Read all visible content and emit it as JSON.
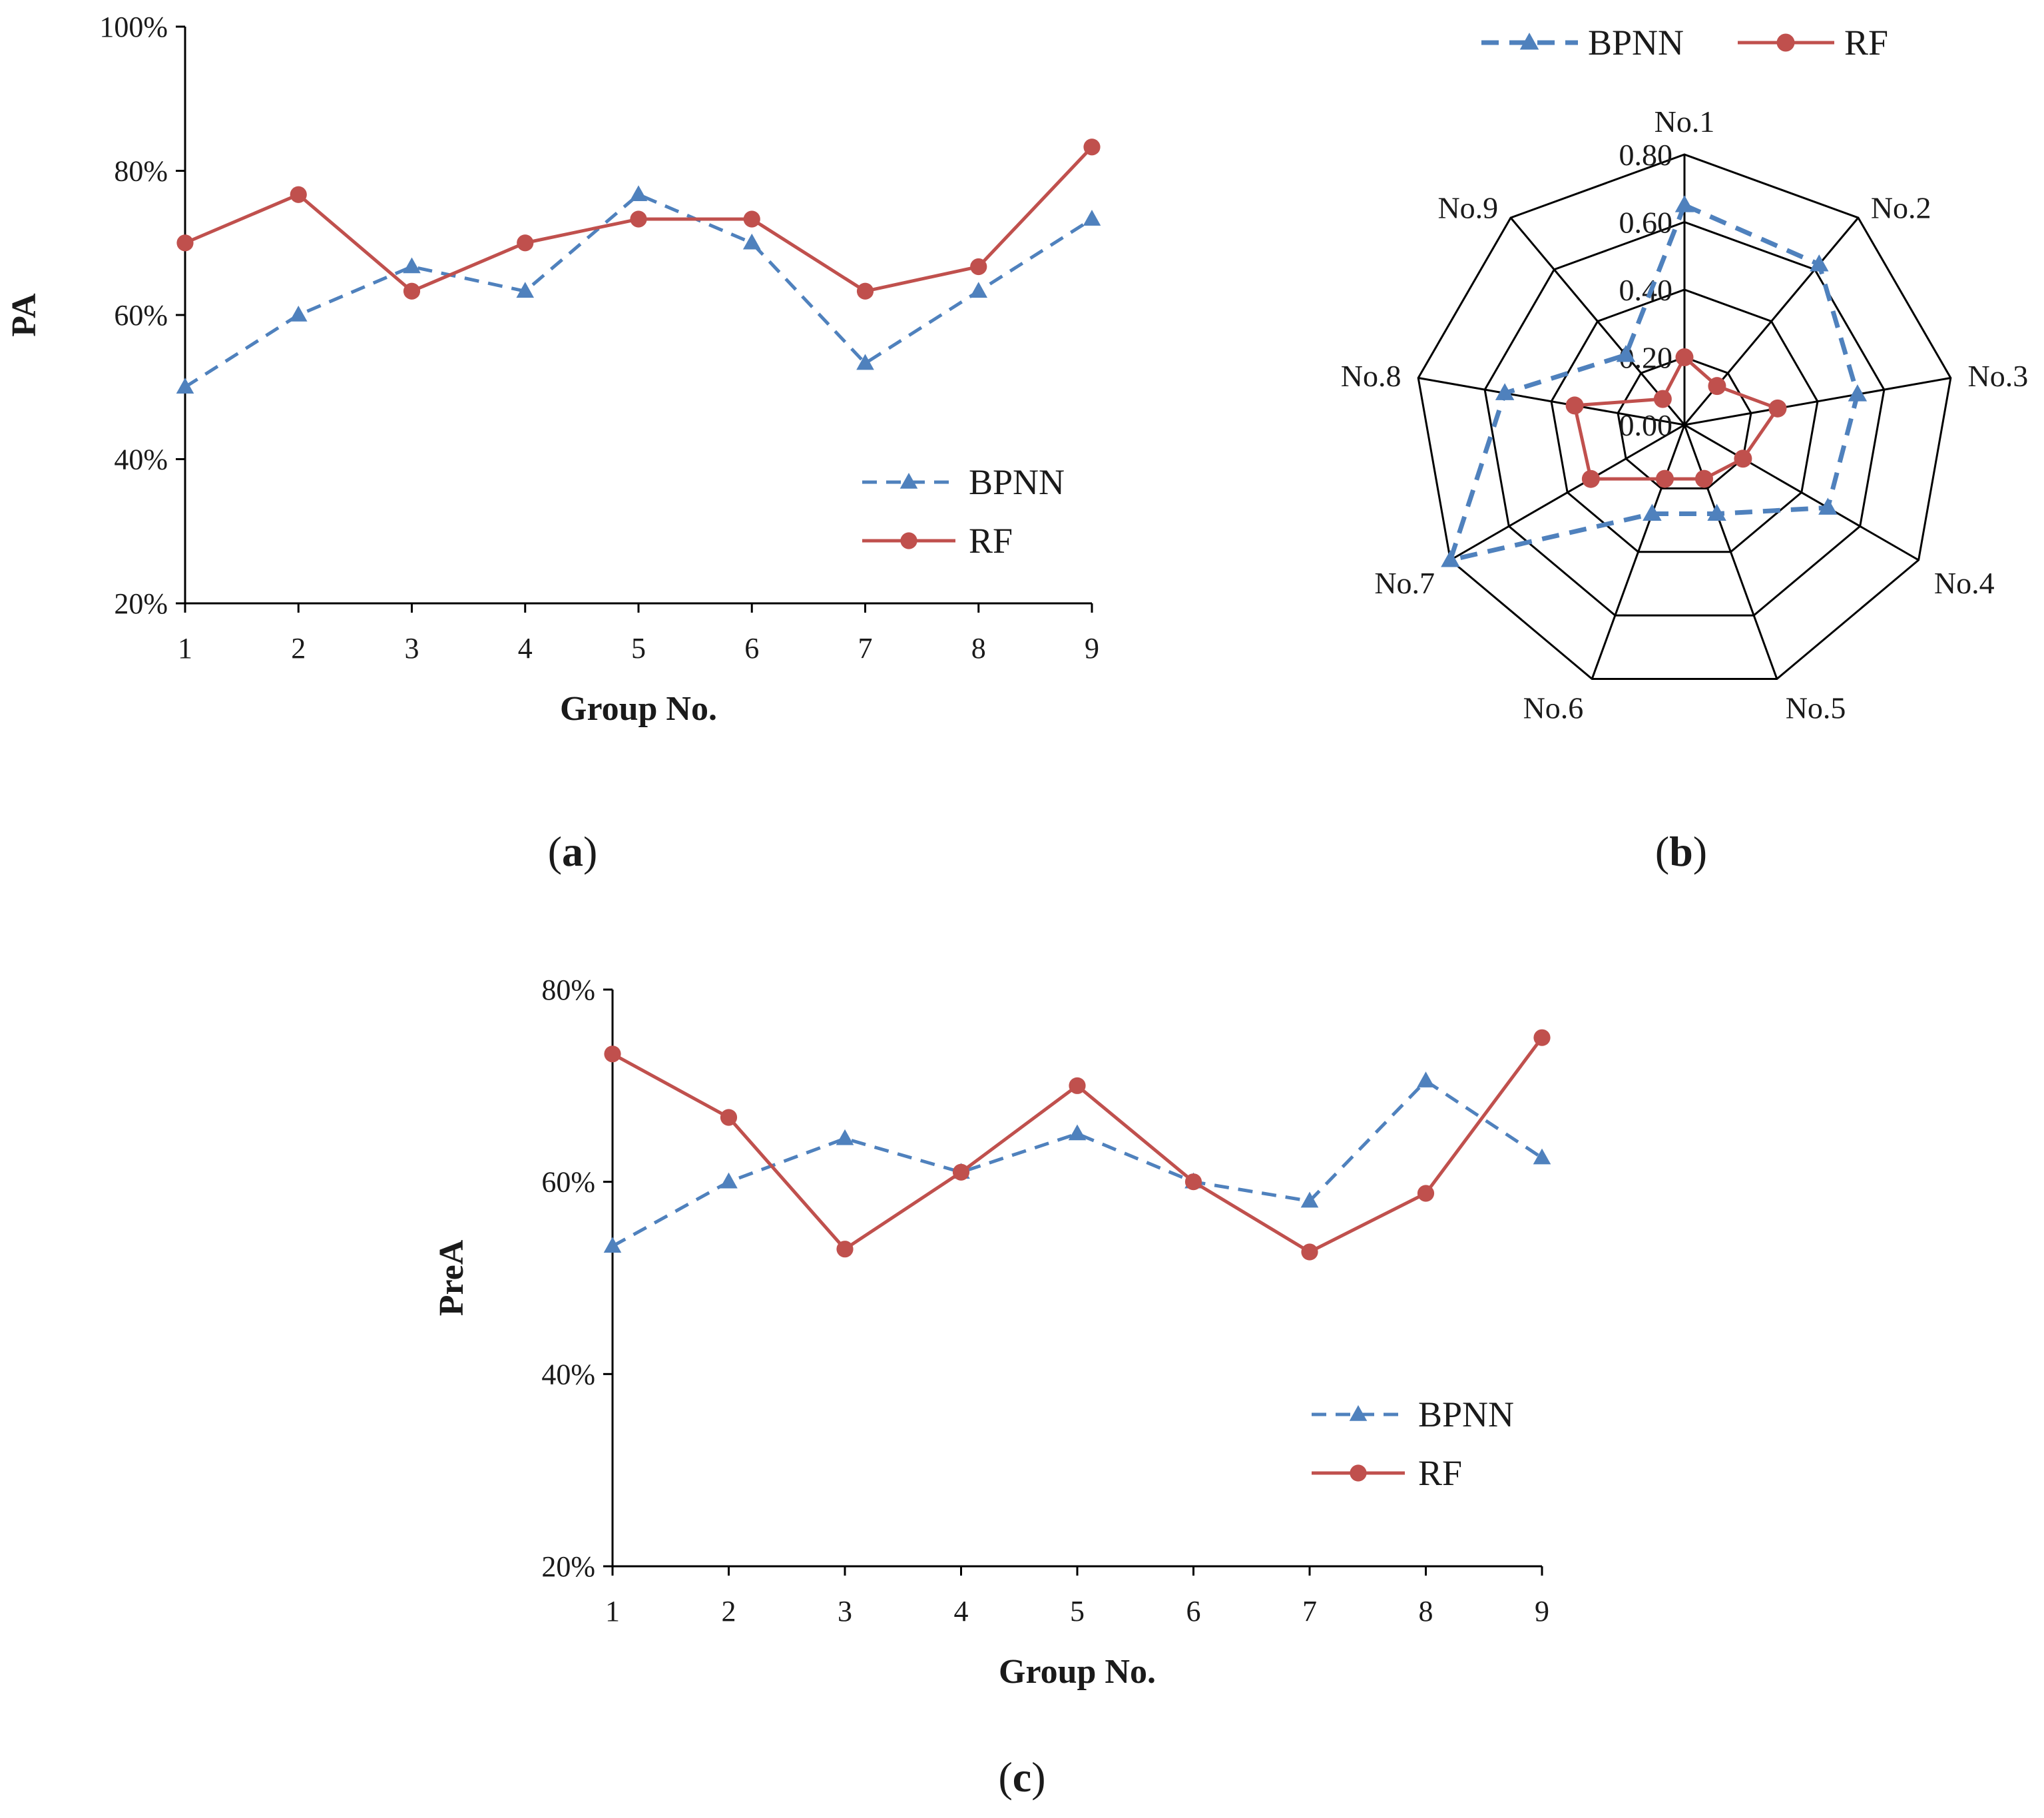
{
  "colors": {
    "bpnn": "#4f81bd",
    "rf": "#c0504d",
    "axis": "#000000",
    "text": "#1a1a1a"
  },
  "chart_data": [
    {
      "id": "a",
      "type": "line",
      "panel_label": "a",
      "xlabel": "Group No.",
      "ylabel": "PA",
      "x": [
        1,
        2,
        3,
        4,
        5,
        6,
        7,
        8,
        9
      ],
      "ylim": [
        20,
        100
      ],
      "yticks": [
        "20%",
        "40%",
        "60%",
        "80%",
        "100%"
      ],
      "ytick_values": [
        20,
        40,
        60,
        80,
        100
      ],
      "legend": "bottom-right",
      "grid": false,
      "series": [
        {
          "name": "BPNN",
          "style": "dashed-triangle",
          "values": [
            50,
            60,
            66.7,
            63.3,
            76.7,
            70,
            53.3,
            63.3,
            73.3
          ]
        },
        {
          "name": "RF",
          "style": "solid-circle",
          "values": [
            70,
            76.7,
            63.3,
            70,
            73.3,
            73.3,
            63.3,
            66.7,
            83.3
          ]
        }
      ]
    },
    {
      "id": "b",
      "type": "radar",
      "panel_label": "b",
      "categories": [
        "No.1",
        "No.2",
        "No.3",
        "No.4",
        "No.5",
        "No.6",
        "No.7",
        "No.8",
        "No.9"
      ],
      "rlim": [
        0,
        0.8
      ],
      "rticks": [
        "0.00",
        "0.20",
        "0.40",
        "0.60",
        "0.80"
      ],
      "rtick_values": [
        0,
        0.2,
        0.4,
        0.6,
        0.8
      ],
      "legend": "top",
      "series": [
        {
          "name": "BPNN",
          "style": "dashed-triangle",
          "values": [
            0.65,
            0.62,
            0.52,
            0.49,
            0.28,
            0.28,
            0.8,
            0.54,
            0.27
          ]
        },
        {
          "name": "RF",
          "style": "solid-circle",
          "values": [
            0.2,
            0.15,
            0.28,
            0.2,
            0.17,
            0.17,
            0.32,
            0.33,
            0.1
          ]
        }
      ]
    },
    {
      "id": "c",
      "type": "line",
      "panel_label": "c",
      "xlabel": "Group No.",
      "ylabel": "PreA",
      "x": [
        1,
        2,
        3,
        4,
        5,
        6,
        7,
        8,
        9
      ],
      "ylim": [
        20,
        80
      ],
      "yticks": [
        "20%",
        "40%",
        "60%",
        "80%"
      ],
      "ytick_values": [
        20,
        40,
        60,
        80
      ],
      "legend": "bottom-right",
      "grid": false,
      "series": [
        {
          "name": "BPNN",
          "style": "dashed-triangle",
          "values": [
            53.3,
            60,
            64.5,
            61,
            65,
            60,
            58,
            70.5,
            62.5
          ]
        },
        {
          "name": "RF",
          "style": "solid-circle",
          "values": [
            73.3,
            66.7,
            53,
            61,
            70,
            60,
            52.7,
            58.8,
            75
          ]
        }
      ]
    }
  ]
}
